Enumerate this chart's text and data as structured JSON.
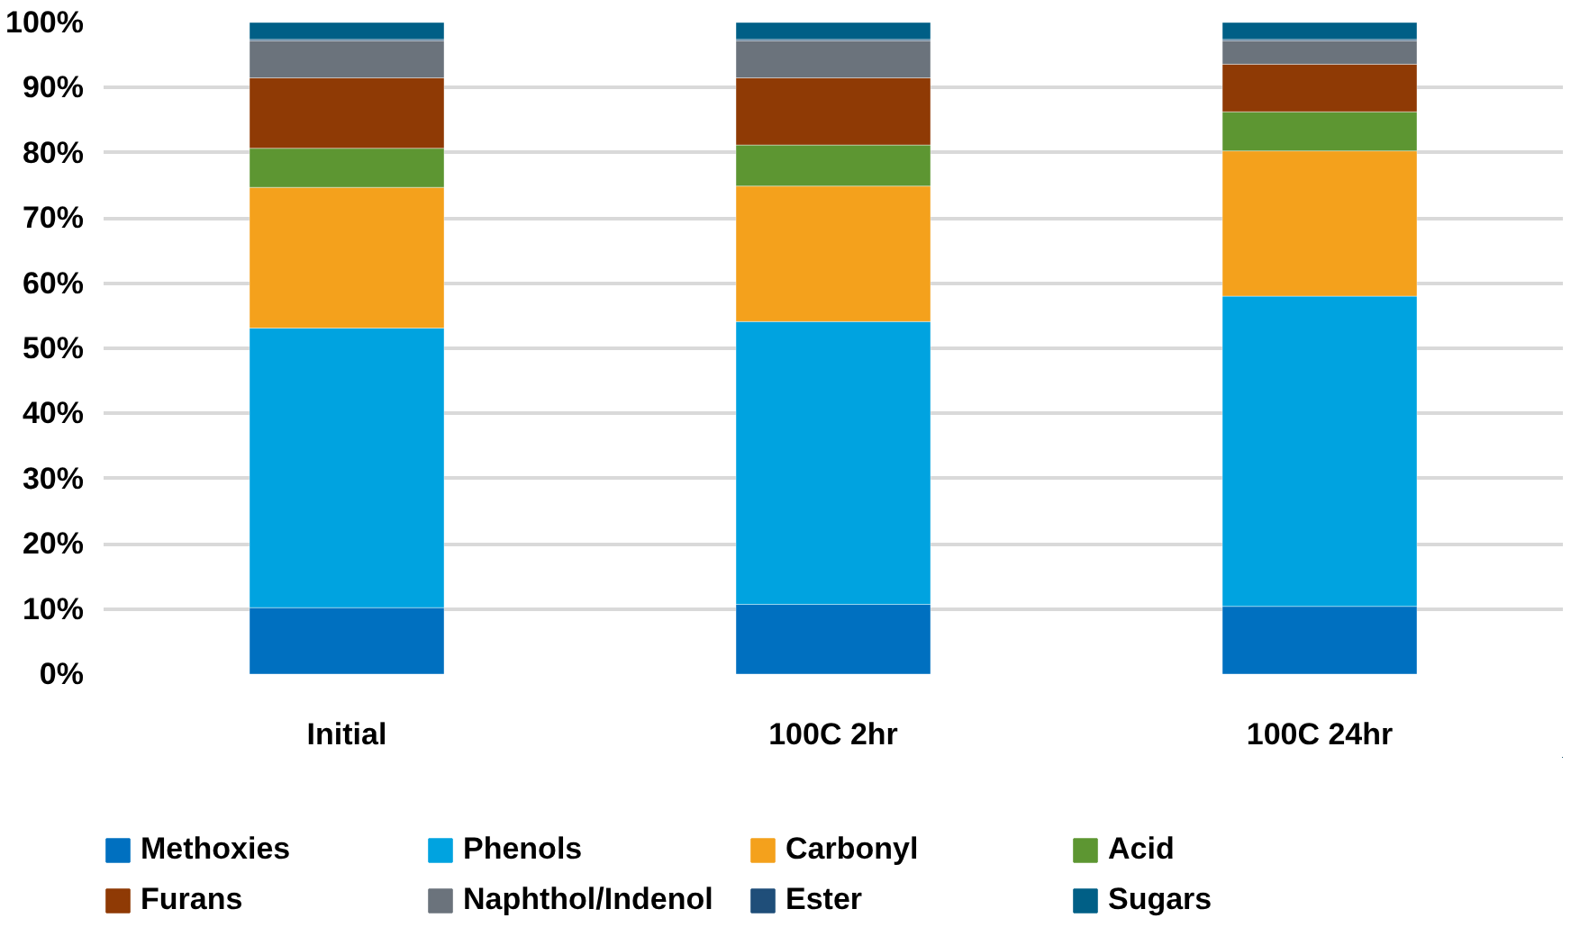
{
  "chart_data": {
    "type": "bar",
    "stacked": true,
    "categories": [
      "Initial",
      "100C 2hr",
      "100C 24hr"
    ],
    "series": [
      {
        "name": "Methoxies",
        "color": "#0070c0",
        "values": [
          10.2,
          10.7,
          10.4
        ]
      },
      {
        "name": "Phenols",
        "color": "#00a3e0",
        "values": [
          42.9,
          43.4,
          47.6
        ]
      },
      {
        "name": "Carbonyl",
        "color": "#f4a11c",
        "values": [
          21.6,
          20.8,
          22.3
        ]
      },
      {
        "name": "Acid",
        "color": "#5d9632",
        "values": [
          6.0,
          6.3,
          6.0
        ]
      },
      {
        "name": "Furans",
        "color": "#8f3a05",
        "values": [
          10.8,
          10.3,
          7.3
        ]
      },
      {
        "name": "Naphthol/Indenol",
        "color": "#6b737c",
        "values": [
          5.7,
          5.7,
          3.6
        ]
      },
      {
        "name": "Ester",
        "color": "#1f4e79",
        "values": [
          0.2,
          0.2,
          0.2
        ]
      },
      {
        "name": "Sugars",
        "color": "#005f86",
        "values": [
          2.6,
          2.6,
          2.6
        ]
      }
    ],
    "ylim": [
      0,
      100
    ],
    "yticks": [
      {
        "value": 0,
        "label": "0%"
      },
      {
        "value": 10,
        "label": "10%"
      },
      {
        "value": 20,
        "label": "20%"
      },
      {
        "value": 30,
        "label": "30%"
      },
      {
        "value": 40,
        "label": "40%"
      },
      {
        "value": 50,
        "label": "50%"
      },
      {
        "value": 60,
        "label": "60%"
      },
      {
        "value": 70,
        "label": "70%"
      },
      {
        "value": 80,
        "label": "80%"
      },
      {
        "value": 90,
        "label": "90%"
      },
      {
        "value": 100,
        "label": "100%"
      }
    ],
    "grid": "y",
    "legend": "bottom"
  }
}
